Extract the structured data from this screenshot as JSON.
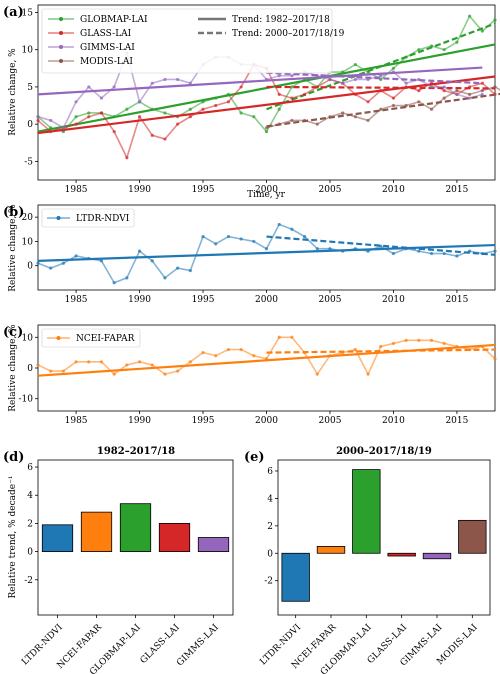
{
  "colors": {
    "GLOBMAP-LAI": "#2ca02c",
    "GLASS-LAI": "#d62728",
    "GIMMS-LAI": "#9467bd",
    "MODIS-LAI": "#8c564b",
    "LTDR-NDVI": "#1f77b4",
    "NCEI-FAPAR": "#ff7f0e"
  },
  "panels": {
    "a": {
      "label": "(a)",
      "xlabel": "Time, yr",
      "ylabel": "Relative change, %"
    },
    "b": {
      "label": "(b)",
      "ylabel": "Relative change, %"
    },
    "c": {
      "label": "(c)",
      "ylabel": "Relative change, %"
    },
    "d": {
      "label": "(d)",
      "title": "1982–2017/18",
      "ylabel": "Relative trend, % decade⁻¹"
    },
    "e": {
      "label": "(e)",
      "title": "2000–2017/18/19"
    }
  },
  "legend_a": {
    "series": [
      "GLOBMAP-LAI",
      "GLASS-LAI",
      "GIMMS-LAI",
      "MODIS-LAI"
    ],
    "trend_full": "Trend: 1982–2017/18",
    "trend_recent": "Trend: 2000–2017/18/19"
  },
  "legend_b": "LTDR-NDVI",
  "legend_c": "NCEI-FAPAR",
  "chart_data": [
    {
      "type": "line",
      "panel": "a",
      "xlim": [
        1982,
        2018
      ],
      "ylim": [
        -7.5,
        16
      ],
      "xticks": [
        1985,
        1990,
        1995,
        2000,
        2005,
        2010,
        2015
      ],
      "yticks": [
        -5,
        0,
        5,
        10,
        15
      ],
      "xlabel": "Time, yr",
      "ylabel": "Relative change, %",
      "series": [
        {
          "name": "GLOBMAP-LAI",
          "x_start": 1982,
          "values": [
            1.0,
            -0.5,
            -1.0,
            1.0,
            1.5,
            1.5,
            1.0,
            2.0,
            3.0,
            2.0,
            1.5,
            1.0,
            2.0,
            3.0,
            3.5,
            4.0,
            1.5,
            1.0,
            -1.0,
            2.0,
            5.0,
            6.0,
            5.0,
            7.0,
            7.0,
            8.0,
            7.0,
            6.0,
            7.5,
            9.0,
            10.0,
            10.5,
            10.0,
            11.0,
            14.5,
            12.5,
            14.0
          ],
          "trend_full": [
            -1.0,
            10.7
          ],
          "trend_recent": [
            2.0,
            13.5
          ]
        },
        {
          "name": "GLASS-LAI",
          "x_start": 1982,
          "values": [
            0.5,
            -1.0,
            -0.5,
            0.0,
            1.0,
            1.5,
            -1.0,
            -4.5,
            1.0,
            -1.5,
            -2.0,
            0.0,
            1.0,
            2.0,
            2.5,
            3.0,
            5.0,
            8.0,
            7.5,
            4.0,
            3.5,
            4.0,
            5.0,
            6.0,
            5.5,
            4.0,
            3.0,
            4.5,
            3.5,
            5.0,
            4.5,
            5.5,
            4.5,
            4.0,
            5.0,
            5.5,
            4.0
          ],
          "trend_full": [
            -1.2,
            6.4
          ],
          "trend_recent": [
            5.0,
            4.8
          ]
        },
        {
          "name": "GIMMS-LAI",
          "x_start": 1982,
          "values": [
            1.0,
            0.5,
            -0.5,
            3.0,
            5.0,
            3.5,
            5.0,
            9.5,
            3.0,
            5.5,
            6.0,
            6.0,
            5.5,
            8.0,
            9.0,
            9.0,
            8.0,
            8.0,
            6.0,
            6.5,
            6.5,
            7.0,
            6.5,
            6.0,
            5.5,
            6.0,
            6.0,
            6.5,
            7.0,
            5.5,
            6.0,
            5.0,
            5.0,
            4.0,
            3.5,
            4.0
          ],
          "trend_full": [
            4.0,
            7.6
          ],
          "trend_recent": [
            6.9,
            5.5
          ]
        },
        {
          "name": "MODIS-LAI",
          "x_start": 2000,
          "values": [
            -0.5,
            0.0,
            0.5,
            0.5,
            0.0,
            1.0,
            1.5,
            1.0,
            0.5,
            2.0,
            2.5,
            2.5,
            3.0,
            2.0,
            3.5,
            4.5,
            4.0,
            4.5,
            5.0,
            4.0
          ],
          "trend_recent": [
            -0.3,
            4.2
          ]
        }
      ]
    },
    {
      "type": "line",
      "panel": "b",
      "xlim": [
        1982,
        2018
      ],
      "ylim": [
        -10,
        25
      ],
      "xticks": [
        1985,
        1990,
        1995,
        2000,
        2005,
        2010,
        2015
      ],
      "yticks": [
        0,
        10,
        20
      ],
      "ylabel": "Relative change, %",
      "series": [
        {
          "name": "LTDR-NDVI",
          "x_start": 1982,
          "values": [
            1,
            -1,
            1,
            4,
            3,
            2,
            -7,
            -5,
            6,
            2,
            -5,
            -1,
            -2,
            12,
            9,
            12,
            11,
            10,
            7,
            17,
            15,
            12,
            7,
            7,
            6,
            7,
            6,
            8,
            5,
            7,
            6,
            5,
            5,
            4,
            6,
            5,
            6
          ],
          "trend_full": [
            2.0,
            8.5
          ],
          "trend_recent": [
            12.0,
            4.5
          ]
        }
      ]
    },
    {
      "type": "line",
      "panel": "c",
      "xlim": [
        1982,
        2018
      ],
      "ylim": [
        -14,
        14
      ],
      "xticks": [
        1985,
        1990,
        1995,
        2000,
        2005,
        2010,
        2015
      ],
      "yticks": [
        -10,
        0,
        10
      ],
      "ylabel": "Relative change, %",
      "series": [
        {
          "name": "NCEI-FAPAR",
          "x_start": 1982,
          "values": [
            1,
            -1,
            -1,
            2,
            2,
            2,
            -2,
            1,
            2,
            1,
            -2,
            -1,
            2,
            5,
            4,
            6,
            6,
            4,
            3,
            10,
            10,
            5,
            -2,
            4,
            5,
            6,
            -2,
            7,
            8,
            9,
            9,
            9,
            8,
            7,
            6,
            7,
            3
          ],
          "trend_full": [
            -2.5,
            7.5
          ],
          "trend_recent": [
            5.0,
            6.0
          ]
        }
      ]
    },
    {
      "type": "bar",
      "panel": "d",
      "title": "1982–2017/18",
      "ylabel": "Relative trend, % decade⁻¹",
      "ylim": [
        -4.5,
        6.5
      ],
      "yticks": [
        -2,
        0,
        2,
        4,
        6
      ],
      "categories": [
        "LTDR-NDVI",
        "NCEI-FAPAR",
        "GLOBMAP-LAI",
        "GLASS-LAI",
        "GIMMS-LAI"
      ],
      "values": [
        1.9,
        2.8,
        3.4,
        2.0,
        1.0
      ]
    },
    {
      "type": "bar",
      "panel": "e",
      "title": "2000–2017/18/19",
      "ylim": [
        -4.5,
        6.8
      ],
      "yticks": [
        -2,
        0,
        2,
        4,
        6
      ],
      "categories": [
        "LTDR-NDVI",
        "NCEI-FAPAR",
        "GLOBMAP-LAI",
        "GLASS-LAI",
        "GIMMS-LAI",
        "MODIS-LAI"
      ],
      "values": [
        -3.5,
        0.5,
        6.1,
        -0.2,
        -0.4,
        2.4
      ]
    }
  ]
}
